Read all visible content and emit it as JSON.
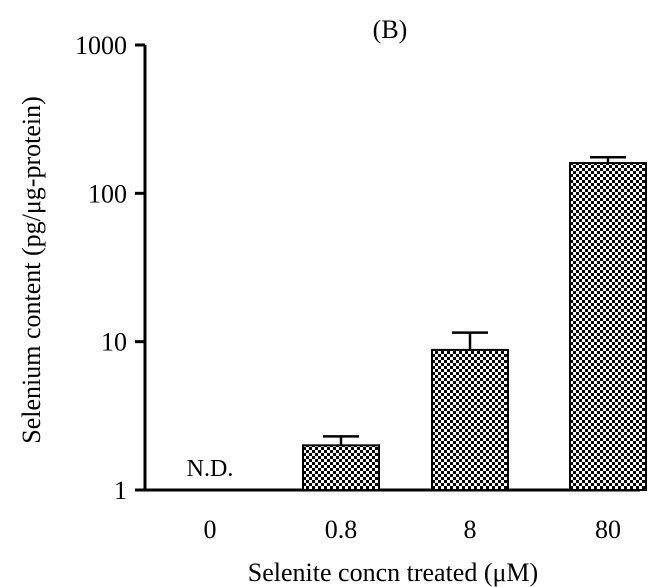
{
  "chart_data": {
    "type": "bar",
    "title": "(B)",
    "xlabel": "Selenite concn treated (μM)",
    "ylabel": "Selenium content (pg/μg-protein)",
    "yscale": "log",
    "ylim": [
      1,
      1000
    ],
    "yticks": [
      1,
      10,
      100,
      1000
    ],
    "categories": [
      "0",
      "0.8",
      "8",
      "80"
    ],
    "values": [
      null,
      2.0,
      8.8,
      160
    ],
    "error_upper": [
      null,
      2.3,
      11.5,
      175
    ],
    "annotations": [
      {
        "category": "0",
        "text": "N.D."
      }
    ],
    "grid": false,
    "legend": "none",
    "bar_fill": "checkered",
    "colors": {
      "bar": "#000000",
      "background": "#ffffff"
    }
  }
}
